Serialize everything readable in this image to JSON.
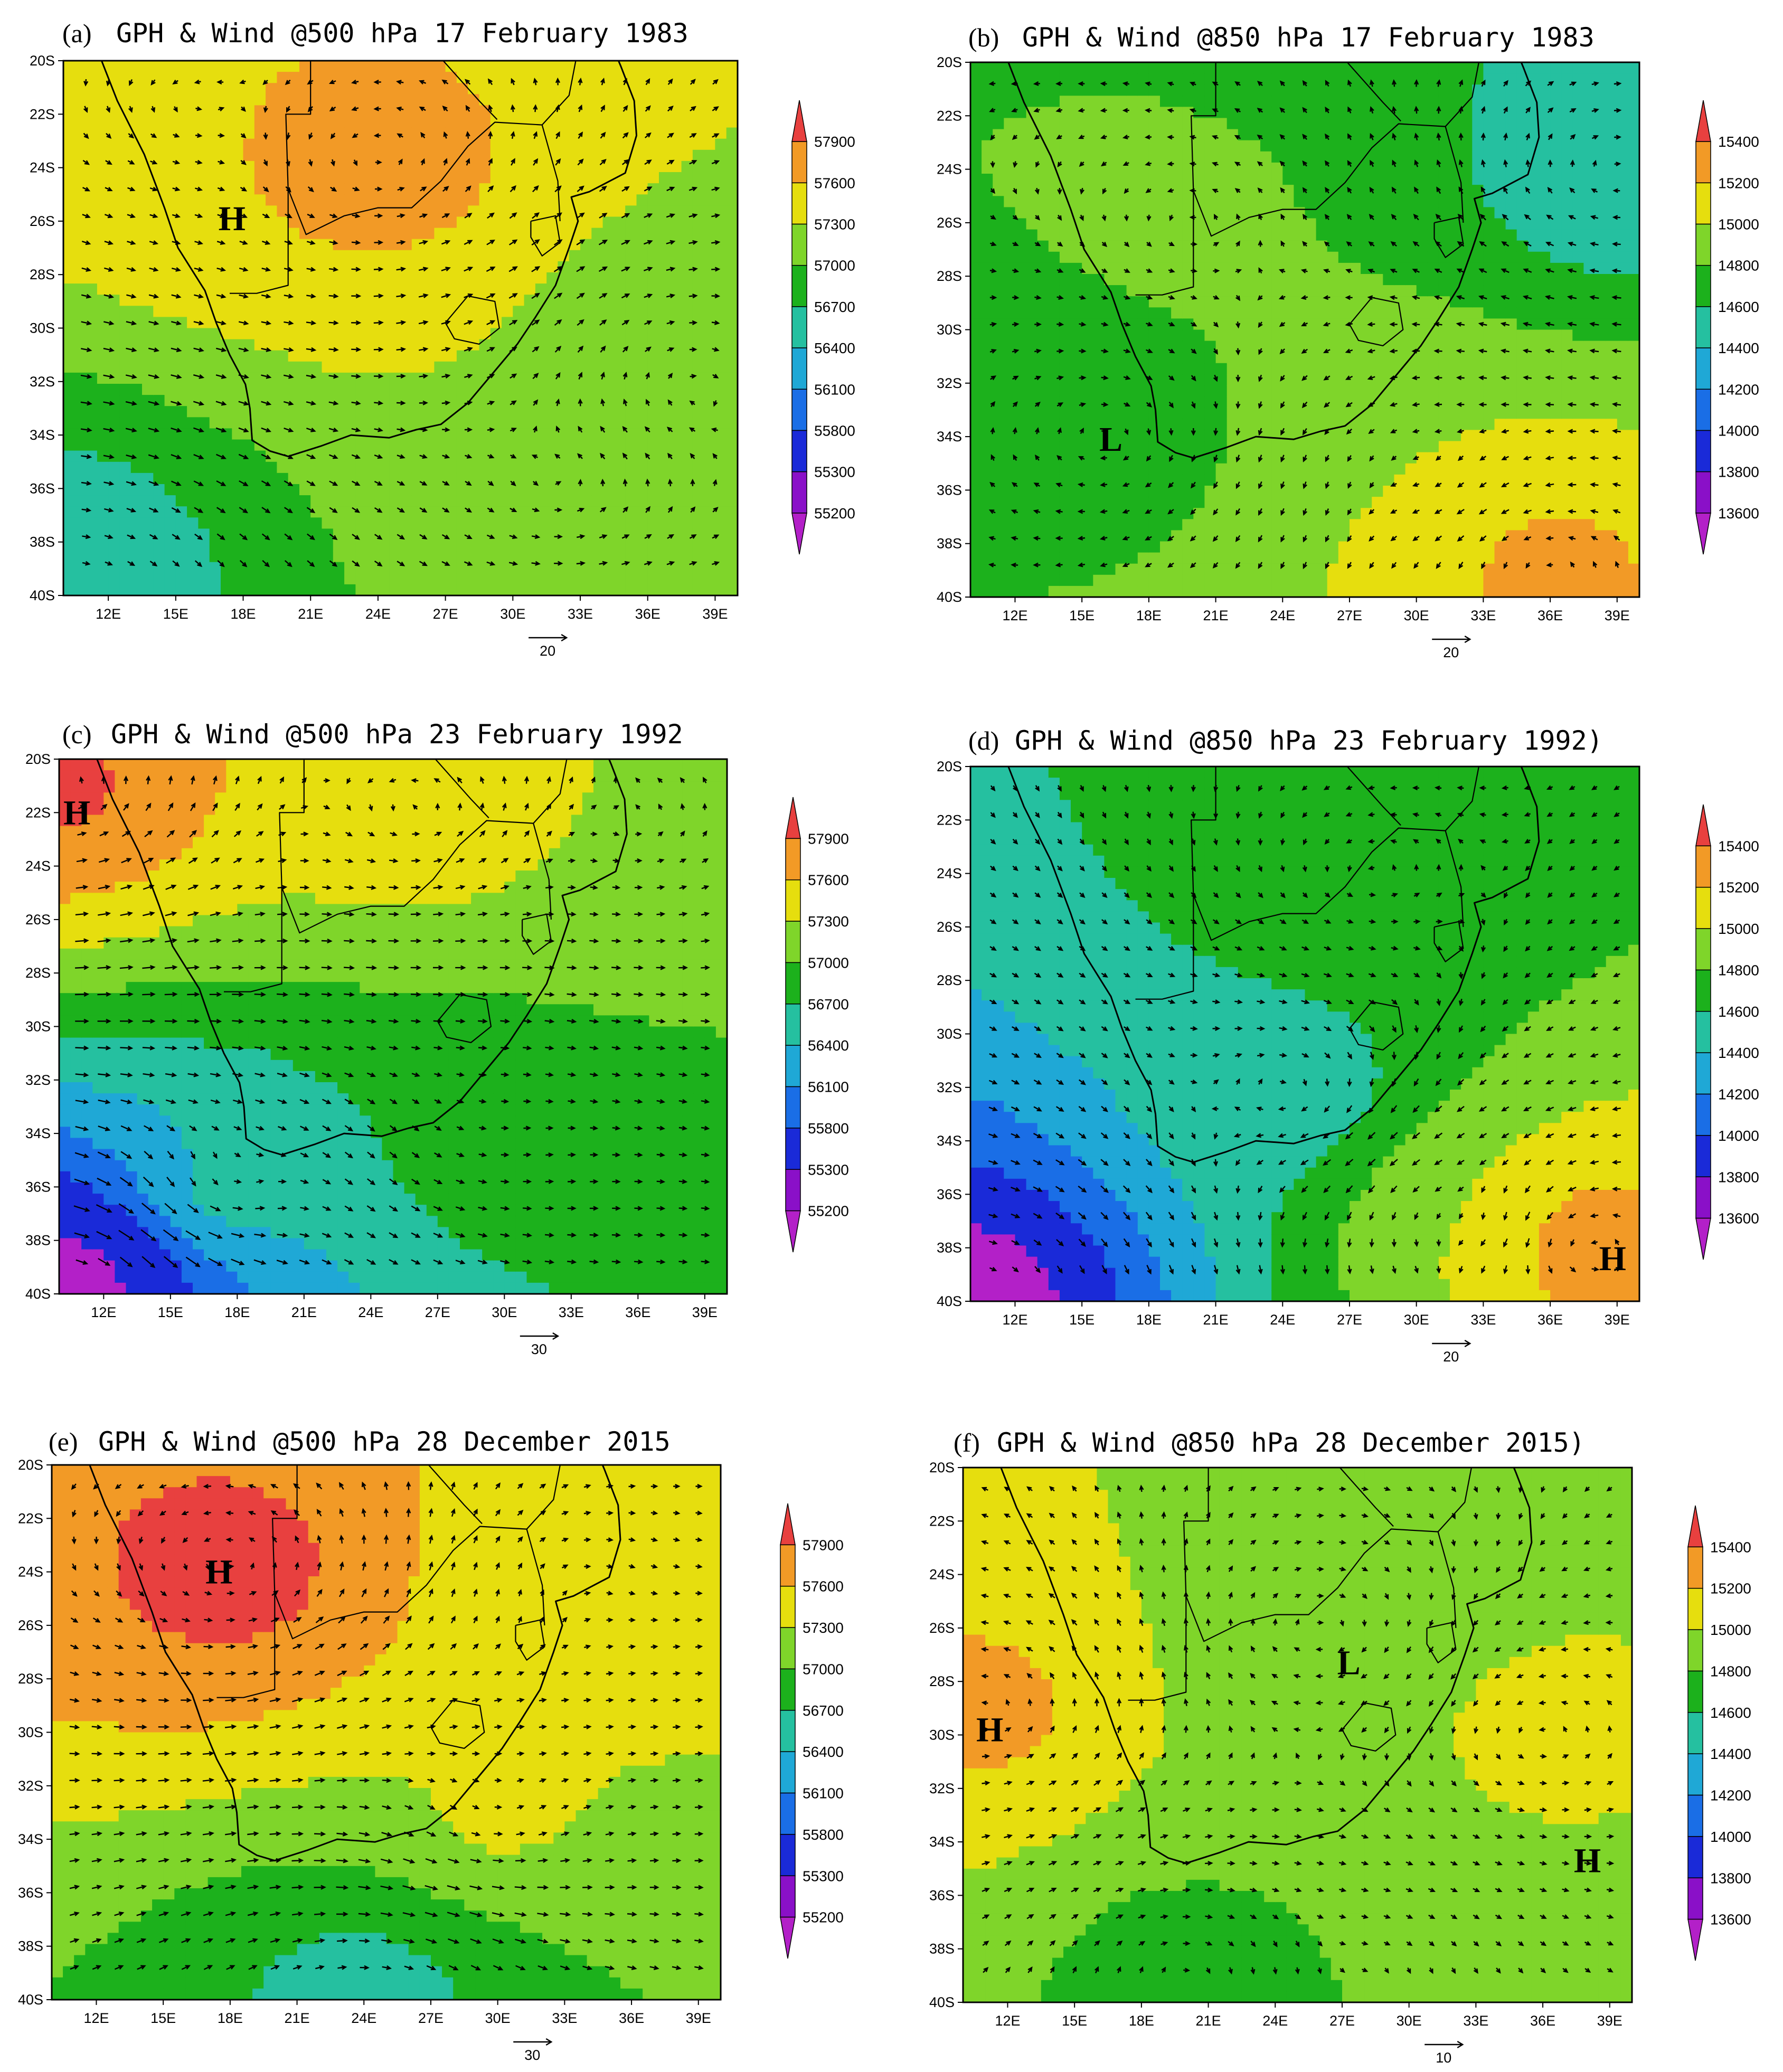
{
  "panels": [
    {
      "id": "a",
      "fig_label": "(a)",
      "title": "GPH & Wind @500 hPa 17 February 1983",
      "level": "500",
      "ref_vector": "20",
      "markers": [
        {
          "label": "H",
          "lon": 17.5,
          "lat": -25.9
        }
      ],
      "field": [
        {
          "lon": 24,
          "lat": -24,
          "v": 57700,
          "w": 1.6
        },
        {
          "lon": 16,
          "lat": -22,
          "v": 57600,
          "w": 1.0
        },
        {
          "lon": 38,
          "lat": -31,
          "v": 57000,
          "w": 1.2
        },
        {
          "lon": 10,
          "lat": -39,
          "v": 56500,
          "w": 1.6
        },
        {
          "lon": 32,
          "lat": -37,
          "v": 57300,
          "w": 0.7
        }
      ]
    },
    {
      "id": "b",
      "fig_label": "(b)",
      "title": "GPH & Wind @850 hPa 17 February 1983",
      "level": "850",
      "ref_vector": "20",
      "markers": [
        {
          "label": "L",
          "lon": 16.3,
          "lat": -34.1
        }
      ],
      "field": [
        {
          "lon": 20,
          "lat": -26,
          "v": 14820,
          "w": 1.2
        },
        {
          "lon": 39,
          "lat": -24,
          "v": 14450,
          "w": 1.4
        },
        {
          "lon": 36,
          "lat": -39,
          "v": 15250,
          "w": 1.5
        },
        {
          "lon": 30,
          "lat": -35,
          "v": 15000,
          "w": 0.8
        },
        {
          "lon": 16,
          "lat": -34,
          "v": 14700,
          "w": 1.2
        }
      ]
    },
    {
      "id": "c",
      "fig_label": "(c)",
      "title": "GPH & Wind @500 hPa 23 February 1992",
      "level": "500",
      "ref_vector": "30",
      "markers": [
        {
          "label": "H",
          "lon": 10.8,
          "lat": -22.0
        }
      ],
      "field": [
        {
          "lon": 10,
          "lat": -21,
          "v": 57950,
          "w": 1.6
        },
        {
          "lon": 26,
          "lat": -22,
          "v": 57500,
          "w": 1.0
        },
        {
          "lon": 36,
          "lat": -23,
          "v": 57300,
          "w": 1.0
        },
        {
          "lon": 30,
          "lat": -34,
          "v": 56850,
          "w": 1.3
        },
        {
          "lon": 10,
          "lat": -40,
          "v": 55100,
          "w": 1.6
        },
        {
          "lon": 18,
          "lat": -36,
          "v": 56500,
          "w": 0.9
        }
      ]
    },
    {
      "id": "d",
      "fig_label": "(d)",
      "title": "GPH & Wind @850 hPa 23 February 1992)",
      "level": "850",
      "ref_vector": "20",
      "markers": [
        {
          "label": "H",
          "lon": 38.8,
          "lat": -38.4
        }
      ],
      "field": [
        {
          "lon": 28,
          "lat": -24,
          "v": 14750,
          "w": 1.4
        },
        {
          "lon": 24,
          "lat": -32,
          "v": 14450,
          "w": 1.0
        },
        {
          "lon": 10,
          "lat": -40,
          "v": 13700,
          "w": 1.6
        },
        {
          "lon": 38,
          "lat": -38,
          "v": 15300,
          "w": 1.4
        },
        {
          "lon": 32,
          "lat": -37,
          "v": 15000,
          "w": 0.8
        }
      ]
    },
    {
      "id": "e",
      "fig_label": "(e)",
      "title": "GPH & Wind @500 hPa 28 December 2015",
      "level": "500",
      "ref_vector": "30",
      "markers": [
        {
          "label": "H",
          "lon": 17.5,
          "lat": -24.0
        }
      ],
      "field": [
        {
          "lon": 18,
          "lat": -24,
          "v": 58000,
          "w": 1.6
        },
        {
          "lon": 34,
          "lat": -24,
          "v": 57350,
          "w": 1.2
        },
        {
          "lon": 24,
          "lat": -40,
          "v": 56600,
          "w": 1.8
        },
        {
          "lon": 30,
          "lat": -33,
          "v": 57350,
          "w": 0.9
        }
      ]
    },
    {
      "id": "f",
      "fig_label": "(f)",
      "title": "GPH & Wind @850 hPa 28 December 2015)",
      "level": "850",
      "ref_vector": "10",
      "markers": [
        {
          "label": "H",
          "lon": 11.2,
          "lat": -29.8
        },
        {
          "label": "L",
          "lon": 27.3,
          "lat": -27.3
        },
        {
          "label": "H",
          "lon": 38.0,
          "lat": -34.7
        }
      ],
      "field": [
        {
          "lon": 11,
          "lat": -29,
          "v": 15250,
          "w": 1.3
        },
        {
          "lon": 26,
          "lat": -26,
          "v": 14850,
          "w": 1.3
        },
        {
          "lon": 36,
          "lat": -30,
          "v": 15050,
          "w": 1.3
        },
        {
          "lon": 20,
          "lat": -39,
          "v": 14700,
          "w": 1.2
        },
        {
          "lon": 28,
          "lat": -39,
          "v": 14800,
          "w": 1.0
        }
      ]
    }
  ],
  "axes": {
    "lon_ticks": [
      "12E",
      "15E",
      "18E",
      "21E",
      "24E",
      "27E",
      "30E",
      "33E",
      "36E",
      "39E"
    ],
    "lat_ticks": [
      "20S",
      "22S",
      "24S",
      "26S",
      "28S",
      "30S",
      "32S",
      "34S",
      "36S",
      "38S",
      "40S"
    ],
    "lon_range": [
      10,
      40
    ],
    "lat_range": [
      -40,
      -20
    ]
  },
  "colorbars": {
    "500": {
      "labels": [
        "57900",
        "57600",
        "57300",
        "57000",
        "56700",
        "56400",
        "56100",
        "55800",
        "55300",
        "55200"
      ],
      "thresholds": [
        57900,
        57600,
        57300,
        57000,
        56700,
        56400,
        56100,
        55800,
        55300,
        55200
      ]
    },
    "850": {
      "labels": [
        "15400",
        "15200",
        "15000",
        "14800",
        "14600",
        "14400",
        "14200",
        "14000",
        "13800",
        "13600"
      ],
      "thresholds": [
        15400,
        15200,
        15000,
        14800,
        14600,
        14400,
        14200,
        14000,
        13800,
        13600
      ]
    }
  },
  "palette": [
    "#e8403f",
    "#f29a26",
    "#e6de0e",
    "#7fd52a",
    "#1cb11c",
    "#25c0a0",
    "#1fa8d6",
    "#1a6ee6",
    "#1a2ad8",
    "#8a10c8",
    "#b320c8"
  ]
}
